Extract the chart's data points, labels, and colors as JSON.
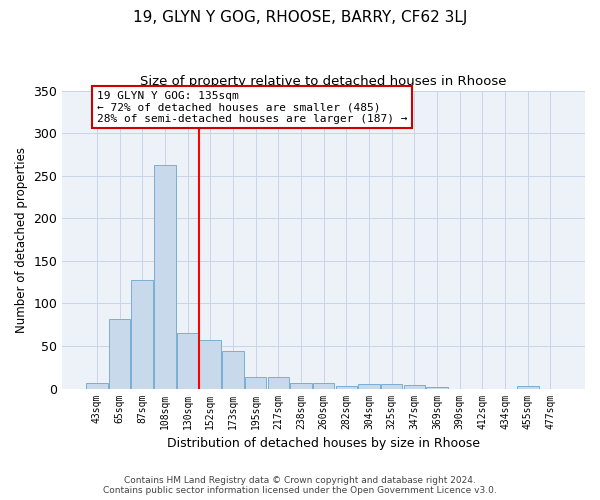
{
  "title": "19, GLYN Y GOG, RHOOSE, BARRY, CF62 3LJ",
  "subtitle": "Size of property relative to detached houses in Rhoose",
  "xlabel": "Distribution of detached houses by size in Rhoose",
  "ylabel": "Number of detached properties",
  "footer_line1": "Contains HM Land Registry data © Crown copyright and database right 2024.",
  "footer_line2": "Contains public sector information licensed under the Open Government Licence v3.0.",
  "bar_labels": [
    "43sqm",
    "65sqm",
    "87sqm",
    "108sqm",
    "130sqm",
    "152sqm",
    "173sqm",
    "195sqm",
    "217sqm",
    "238sqm",
    "260sqm",
    "282sqm",
    "304sqm",
    "325sqm",
    "347sqm",
    "369sqm",
    "390sqm",
    "412sqm",
    "434sqm",
    "455sqm",
    "477sqm"
  ],
  "bar_values": [
    6,
    82,
    127,
    262,
    65,
    57,
    44,
    14,
    14,
    6,
    6,
    3,
    5,
    5,
    4,
    2,
    0,
    0,
    0,
    3,
    0
  ],
  "bar_color": "#c9d9ec",
  "bar_edge_color": "#7aaed4",
  "red_line_x": 4.5,
  "annotation_title": "19 GLYN Y GOG: 135sqm",
  "annotation_line1": "← 72% of detached houses are smaller (485)",
  "annotation_line2": "28% of semi-detached houses are larger (187) →",
  "annotation_box_color": "#ffffff",
  "annotation_box_edge": "#cc0000",
  "ylim": [
    0,
    350
  ],
  "yticks": [
    0,
    50,
    100,
    150,
    200,
    250,
    300,
    350
  ],
  "grid_color": "#c8d4e8",
  "background_color": "#edf2f9"
}
